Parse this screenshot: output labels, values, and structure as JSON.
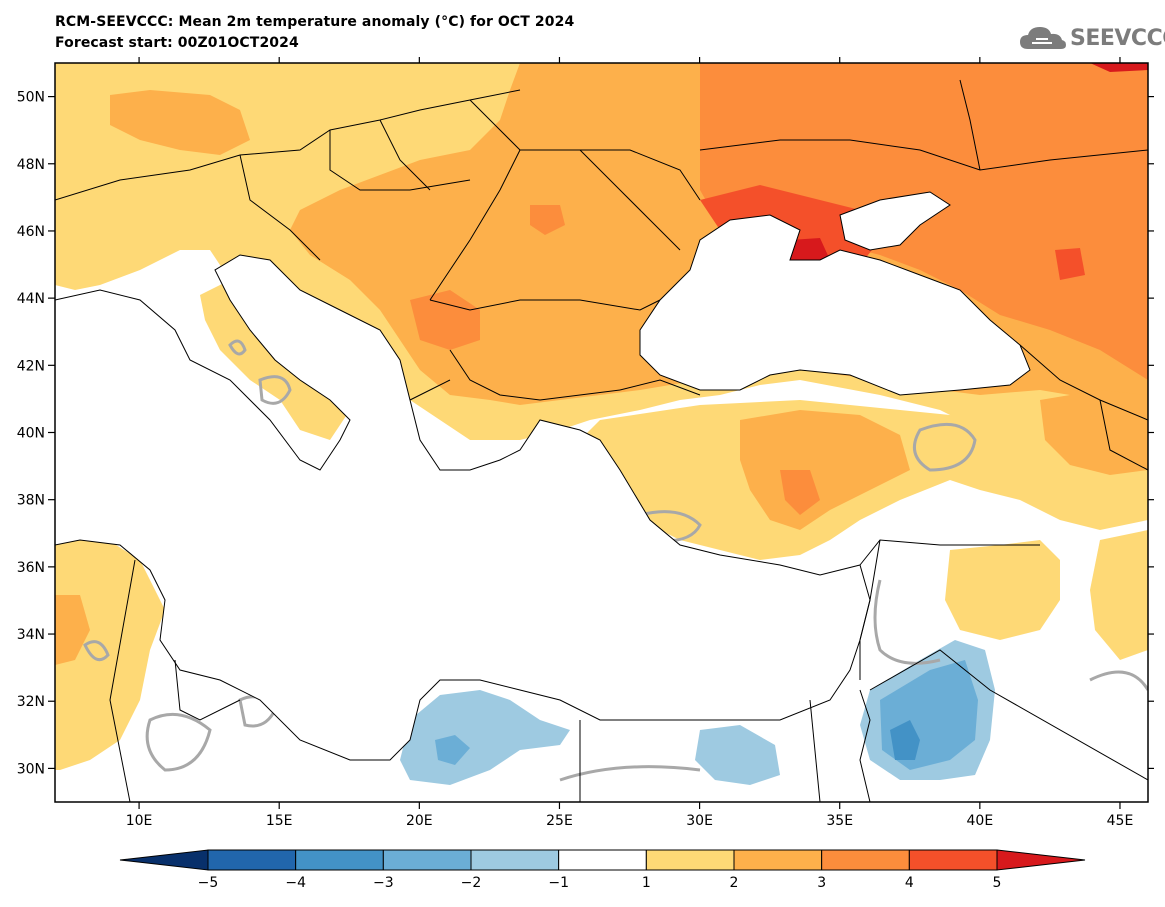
{
  "title_line1": "RCM-SEEVCCC: Mean 2m temperature anomaly (°C) for OCT 2024",
  "title_line2": "Forecast start: 00Z01OCT2024",
  "logo_text": "SEEVCCC",
  "map": {
    "lon_range": [
      7,
      46
    ],
    "lat_range": [
      29,
      51
    ],
    "lon_ticks": [
      "10E",
      "15E",
      "20E",
      "25E",
      "30E",
      "35E",
      "40E",
      "45E"
    ],
    "lat_ticks": [
      "50N",
      "48N",
      "46N",
      "44N",
      "42N",
      "40N",
      "38N",
      "36N",
      "34N",
      "32N",
      "30N"
    ]
  },
  "colorbar": {
    "labels": [
      "-5",
      "-4",
      "-3",
      "-2",
      "-1",
      "1",
      "2",
      "3",
      "4",
      "5"
    ],
    "colors": [
      "#08306b",
      "#2166ac",
      "#4392c6",
      "#6baed6",
      "#9ecae1",
      "#ffffff",
      "#fed976",
      "#fdb04b",
      "#fc8d3c",
      "#f4502a",
      "#d7191c"
    ]
  },
  "palette": {
    "a1": "#fed976",
    "a2": "#fdb04b",
    "a3": "#fc8d3c",
    "a4": "#f4502a",
    "a5": "#d7191c",
    "n2": "#9ecae1",
    "n3": "#6baed6",
    "n4": "#4392c6"
  }
}
